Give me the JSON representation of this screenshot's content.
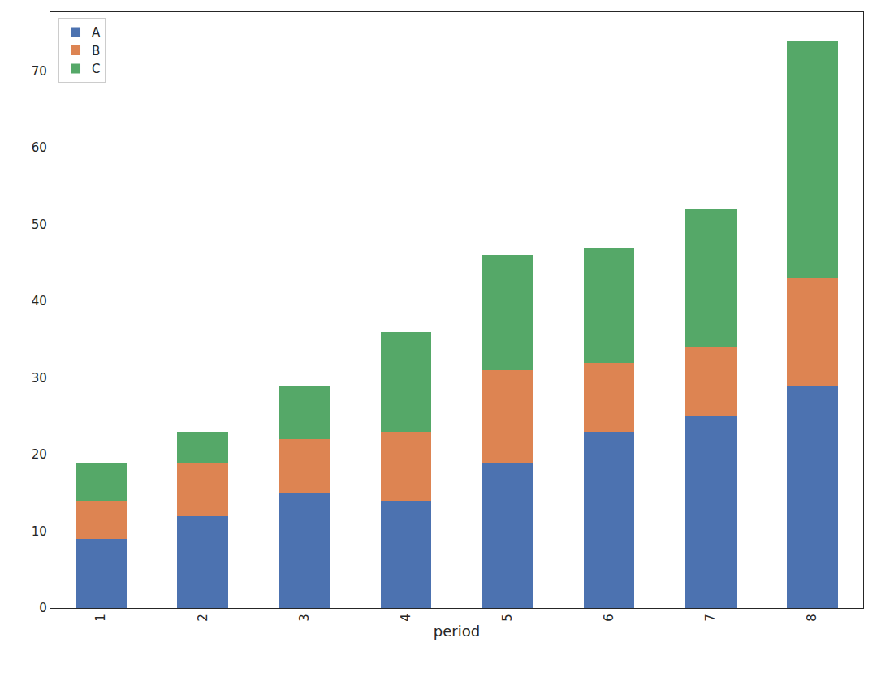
{
  "chart_data": {
    "type": "bar",
    "stacked": true,
    "x_label": "period",
    "categories": [
      "1",
      "2",
      "3",
      "4",
      "5",
      "6",
      "7",
      "8"
    ],
    "series": [
      {
        "name": "A",
        "color": "#4c72b0",
        "values": [
          9,
          12,
          15,
          14,
          19,
          23,
          25,
          29
        ]
      },
      {
        "name": "B",
        "color": "#dd8452",
        "values": [
          5,
          7,
          7,
          9,
          12,
          9,
          9,
          14
        ]
      },
      {
        "name": "C",
        "color": "#55a868",
        "values": [
          5,
          4,
          7,
          13,
          15,
          15,
          18,
          31
        ]
      }
    ],
    "ylim": [
      0,
      77.7
    ],
    "yticks": [
      0,
      10,
      20,
      30,
      40,
      50,
      60,
      70
    ],
    "grid": false,
    "legend": "upper left"
  }
}
